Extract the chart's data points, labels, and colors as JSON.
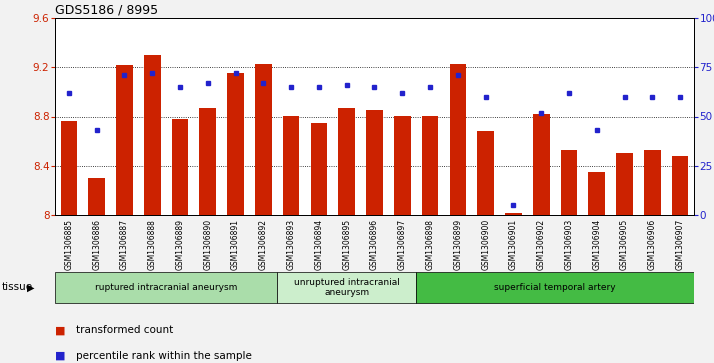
{
  "title": "GDS5186 / 8995",
  "samples": [
    "GSM1306885",
    "GSM1306886",
    "GSM1306887",
    "GSM1306888",
    "GSM1306889",
    "GSM1306890",
    "GSM1306891",
    "GSM1306892",
    "GSM1306893",
    "GSM1306894",
    "GSM1306895",
    "GSM1306896",
    "GSM1306897",
    "GSM1306898",
    "GSM1306899",
    "GSM1306900",
    "GSM1306901",
    "GSM1306902",
    "GSM1306903",
    "GSM1306904",
    "GSM1306905",
    "GSM1306906",
    "GSM1306907"
  ],
  "bar_values": [
    8.76,
    8.3,
    9.22,
    9.3,
    8.78,
    8.87,
    9.15,
    9.23,
    8.8,
    8.75,
    8.87,
    8.85,
    8.8,
    8.8,
    9.23,
    8.68,
    8.02,
    8.82,
    8.53,
    8.35,
    8.5,
    8.53,
    8.48
  ],
  "percentile_values": [
    62,
    43,
    71,
    72,
    65,
    67,
    72,
    67,
    65,
    65,
    66,
    65,
    62,
    65,
    71,
    60,
    5,
    52,
    62,
    43,
    60,
    60,
    60
  ],
  "ylim_left": [
    8.0,
    9.6
  ],
  "ylim_right": [
    0,
    100
  ],
  "yticks_left": [
    8.0,
    8.4,
    8.8,
    9.2,
    9.6
  ],
  "yticks_right": [
    0,
    25,
    50,
    75,
    100
  ],
  "bar_color": "#cc2200",
  "dot_color": "#2222cc",
  "groups": [
    {
      "label": "ruptured intracranial aneurysm",
      "start": 0,
      "end": 7,
      "color": "#aaddaa"
    },
    {
      "label": "unruptured intracranial\naneurysm",
      "start": 8,
      "end": 12,
      "color": "#cceecc"
    },
    {
      "label": "superficial temporal artery",
      "start": 13,
      "end": 22,
      "color": "#44bb44"
    }
  ],
  "tissue_label": "tissue",
  "legend_bar_label": "transformed count",
  "legend_dot_label": "percentile rank within the sample",
  "background_color": "#f2f2f2",
  "plot_bg_color": "#ffffff",
  "xticklabel_bg": "#d8d8d8"
}
